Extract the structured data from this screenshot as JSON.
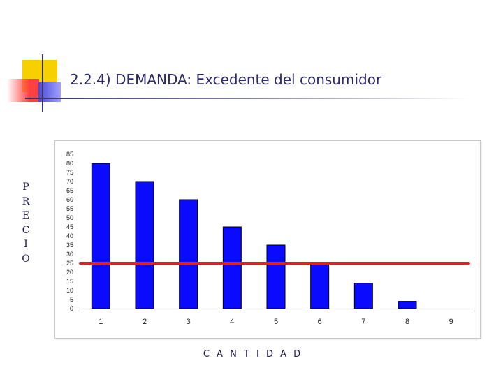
{
  "slide": {
    "title": "2.2.4) DEMANDA: Excedente del consumidor"
  },
  "colors": {
    "bar": "#0a0aff",
    "price_line": "#e32020",
    "title": "#2b2b6b"
  },
  "chart_data": {
    "type": "bar",
    "categories": [
      "1",
      "2",
      "3",
      "4",
      "5",
      "6",
      "7",
      "8",
      "9"
    ],
    "values": [
      80,
      70,
      60,
      45,
      35,
      25,
      14,
      4,
      0
    ],
    "ylim": [
      0,
      85
    ],
    "yticks": [
      0,
      5,
      10,
      15,
      20,
      25,
      30,
      35,
      40,
      45,
      50,
      55,
      60,
      65,
      70,
      75,
      80,
      85
    ],
    "xlabel": "C A N T I D A D",
    "ylabel": "PRECIO",
    "reference_line": {
      "y": 25
    },
    "grid": false,
    "legend": "none"
  }
}
